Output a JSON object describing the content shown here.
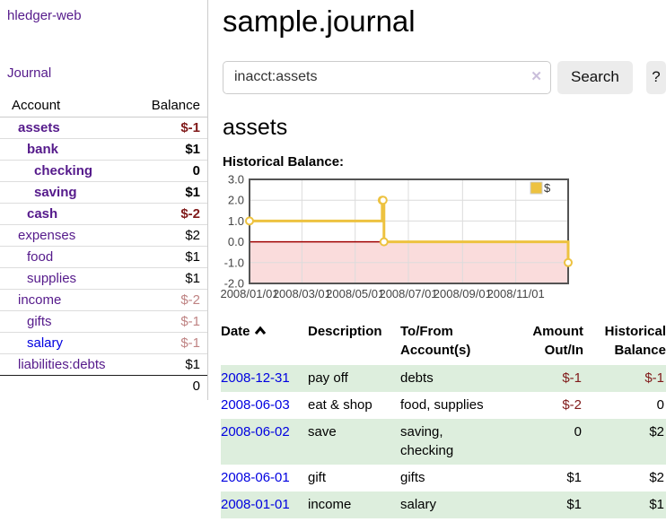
{
  "app": {
    "brand": "hledger-web",
    "nav_journal": "Journal"
  },
  "sidebar": {
    "header": {
      "account": "Account",
      "balance": "Balance"
    },
    "accounts": [
      {
        "name": "assets",
        "depth": 1,
        "bold": true,
        "blue": false,
        "balance": "$-1",
        "neg": "strong"
      },
      {
        "name": "bank",
        "depth": 2,
        "bold": true,
        "blue": false,
        "balance": "$1",
        "neg": null
      },
      {
        "name": "checking",
        "depth": 3,
        "bold": true,
        "blue": false,
        "balance": "0",
        "neg": null
      },
      {
        "name": "saving",
        "depth": 3,
        "bold": true,
        "blue": false,
        "balance": "$1",
        "neg": null
      },
      {
        "name": "cash",
        "depth": 2,
        "bold": true,
        "blue": false,
        "balance": "$-2",
        "neg": "strong"
      },
      {
        "name": "expenses",
        "depth": 1,
        "bold": false,
        "blue": false,
        "balance": "$2",
        "neg": null
      },
      {
        "name": "food",
        "depth": 2,
        "bold": false,
        "blue": false,
        "balance": "$1",
        "neg": null
      },
      {
        "name": "supplies",
        "depth": 2,
        "bold": false,
        "blue": false,
        "balance": "$1",
        "neg": null
      },
      {
        "name": "income",
        "depth": 1,
        "bold": false,
        "blue": false,
        "balance": "$-2",
        "neg": "soft"
      },
      {
        "name": "gifts",
        "depth": 2,
        "bold": false,
        "blue": false,
        "balance": "$-1",
        "neg": "soft"
      },
      {
        "name": "salary",
        "depth": 2,
        "bold": false,
        "blue": true,
        "balance": "$-1",
        "neg": "soft"
      },
      {
        "name": "liabilities:debts",
        "depth": 1,
        "bold": false,
        "blue": false,
        "balance": "$1",
        "neg": null
      }
    ],
    "total": "0"
  },
  "header": {
    "title": "sample.journal"
  },
  "search": {
    "value": "inacct:assets",
    "clear_icon": "✕",
    "button": "Search",
    "help_button": "?"
  },
  "account_view": {
    "heading": "assets",
    "chart_label": "Historical Balance:"
  },
  "chart_data": {
    "type": "line",
    "step": true,
    "title": "Historical Balance:",
    "series": [
      {
        "name": "$",
        "color": "#edc240",
        "points": [
          [
            "2008-01-01",
            1
          ],
          [
            "2008-06-01",
            2
          ],
          [
            "2008-06-02",
            2
          ],
          [
            "2008-06-03",
            0
          ],
          [
            "2008-12-31",
            -1
          ]
        ]
      }
    ],
    "ylim": [
      -2,
      3
    ],
    "yticks": [
      "3.0",
      "2.0",
      "1.0",
      "0.0",
      "-1.0",
      "-2.0"
    ],
    "xticks": [
      "2008/01/01",
      "2008/03/01",
      "2008/05/01",
      "2008/07/01",
      "2008/09/01",
      "2008/11/01"
    ],
    "grid": true,
    "legend_position": "top-right",
    "legend_label": "$",
    "colors": {
      "negative_fill": "#fadcdc",
      "zero_line": "#a00000",
      "grid_line": "#dcdcdc",
      "border": "#545454",
      "tick_text": "#444444",
      "legend_border": "#cccccc"
    }
  },
  "register": {
    "header": {
      "date": "Date",
      "description": "Description",
      "accounts": "To/From\nAccount(s)",
      "amount": "Amount\nOut/In",
      "balance": "Historical\nBalance"
    },
    "rows": [
      {
        "date": "2008-12-31",
        "description": "pay off",
        "accounts": "debts",
        "amount": "$-1",
        "amount_neg": true,
        "balance": "$-1",
        "balance_neg": true
      },
      {
        "date": "2008-06-03",
        "description": "eat & shop",
        "accounts": "food, supplies",
        "amount": "$-2",
        "amount_neg": true,
        "balance": "0",
        "balance_neg": false
      },
      {
        "date": "2008-06-02",
        "description": "save",
        "accounts": "saving,\nchecking",
        "amount": "0",
        "amount_neg": false,
        "balance": "$2",
        "balance_neg": false
      },
      {
        "date": "2008-06-01",
        "description": "gift",
        "accounts": "gifts",
        "amount": "$1",
        "amount_neg": false,
        "balance": "$2",
        "balance_neg": false
      },
      {
        "date": "2008-01-01",
        "description": "income",
        "accounts": "salary",
        "amount": "$1",
        "amount_neg": false,
        "balance": "$1",
        "balance_neg": false
      }
    ]
  }
}
